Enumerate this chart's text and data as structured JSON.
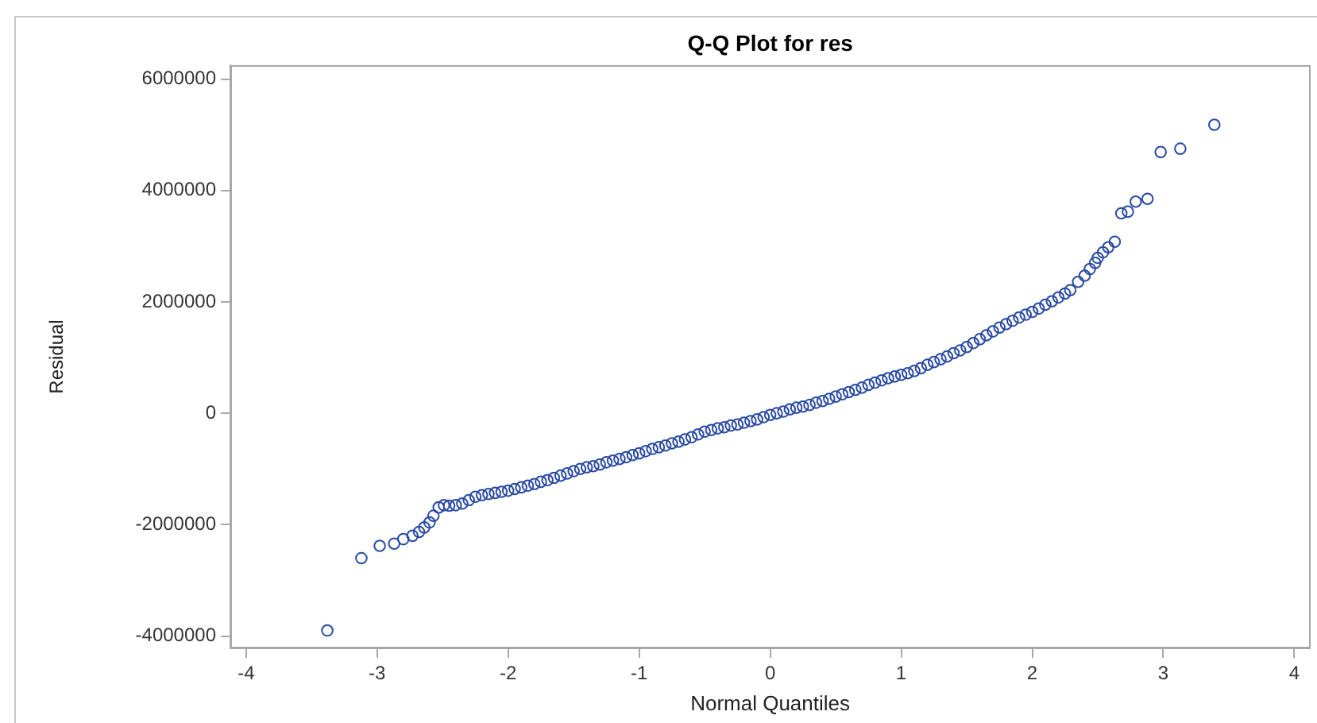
{
  "chart_data": {
    "type": "scatter",
    "title": "Q-Q Plot for res",
    "xlabel": "Normal Quantiles",
    "ylabel": "Residual",
    "x": [
      -3.38,
      -3.12,
      -2.98,
      -2.87,
      -2.8,
      -2.73,
      -2.68,
      -2.64,
      -2.6,
      -2.57,
      -2.53,
      -2.49,
      -2.45,
      -2.4,
      -2.35,
      -2.3,
      -2.25,
      -2.2,
      -2.15,
      -2.1,
      -2.05,
      -2.0,
      -1.95,
      -1.9,
      -1.85,
      -1.8,
      -1.75,
      -1.7,
      -1.65,
      -1.6,
      -1.55,
      -1.5,
      -1.45,
      -1.4,
      -1.35,
      -1.3,
      -1.25,
      -1.2,
      -1.15,
      -1.1,
      -1.05,
      -1.0,
      -0.95,
      -0.9,
      -0.85,
      -0.8,
      -0.75,
      -0.7,
      -0.65,
      -0.6,
      -0.55,
      -0.5,
      -0.45,
      -0.4,
      -0.35,
      -0.3,
      -0.25,
      -0.2,
      -0.15,
      -0.1,
      -0.05,
      0.0,
      0.05,
      0.1,
      0.15,
      0.2,
      0.25,
      0.3,
      0.35,
      0.4,
      0.45,
      0.5,
      0.55,
      0.6,
      0.65,
      0.7,
      0.75,
      0.8,
      0.85,
      0.9,
      0.95,
      1.0,
      1.05,
      1.1,
      1.15,
      1.2,
      1.25,
      1.3,
      1.35,
      1.4,
      1.45,
      1.5,
      1.55,
      1.6,
      1.65,
      1.7,
      1.75,
      1.8,
      1.85,
      1.9,
      1.95,
      2.0,
      2.05,
      2.1,
      2.15,
      2.2,
      2.25,
      2.29,
      2.35,
      2.4,
      2.44,
      2.48,
      2.5,
      2.54,
      2.58,
      2.63,
      2.68,
      2.73,
      2.79,
      2.88,
      2.98,
      3.13,
      3.39
    ],
    "values": [
      -3900000,
      -2600000,
      -2380000,
      -2340000,
      -2260000,
      -2200000,
      -2130000,
      -2050000,
      -1960000,
      -1840000,
      -1690000,
      -1650000,
      -1660000,
      -1650000,
      -1620000,
      -1560000,
      -1500000,
      -1470000,
      -1450000,
      -1430000,
      -1410000,
      -1390000,
      -1360000,
      -1330000,
      -1300000,
      -1270000,
      -1230000,
      -1200000,
      -1160000,
      -1120000,
      -1080000,
      -1040000,
      -1000000,
      -970000,
      -950000,
      -920000,
      -880000,
      -850000,
      -820000,
      -790000,
      -750000,
      -720000,
      -680000,
      -640000,
      -610000,
      -580000,
      -540000,
      -510000,
      -470000,
      -430000,
      -380000,
      -330000,
      -300000,
      -270000,
      -250000,
      -220000,
      -200000,
      -170000,
      -140000,
      -110000,
      -70000,
      -30000,
      0,
      30000,
      70000,
      100000,
      120000,
      150000,
      190000,
      220000,
      260000,
      300000,
      340000,
      380000,
      420000,
      460000,
      510000,
      550000,
      590000,
      630000,
      660000,
      690000,
      720000,
      760000,
      810000,
      870000,
      920000,
      970000,
      1020000,
      1080000,
      1130000,
      1190000,
      1260000,
      1330000,
      1400000,
      1470000,
      1540000,
      1600000,
      1660000,
      1720000,
      1770000,
      1820000,
      1880000,
      1950000,
      2010000,
      2080000,
      2150000,
      2210000,
      2360000,
      2470000,
      2590000,
      2700000,
      2790000,
      2890000,
      2980000,
      3080000,
      3590000,
      3620000,
      3800000,
      3850000,
      4690000,
      4750000,
      5180000
    ],
    "color": "#2a4ba3",
    "marker": "circle",
    "xlim": [
      -4.12,
      4.12
    ],
    "ylim": [
      -4220000,
      6250000
    ],
    "xticks": [
      -4,
      -3,
      -2,
      -1,
      0,
      1,
      2,
      3,
      4
    ],
    "yticks": [
      -4000000,
      -2000000,
      0,
      2000000,
      4000000,
      6000000
    ],
    "grid": false,
    "legend": false
  }
}
